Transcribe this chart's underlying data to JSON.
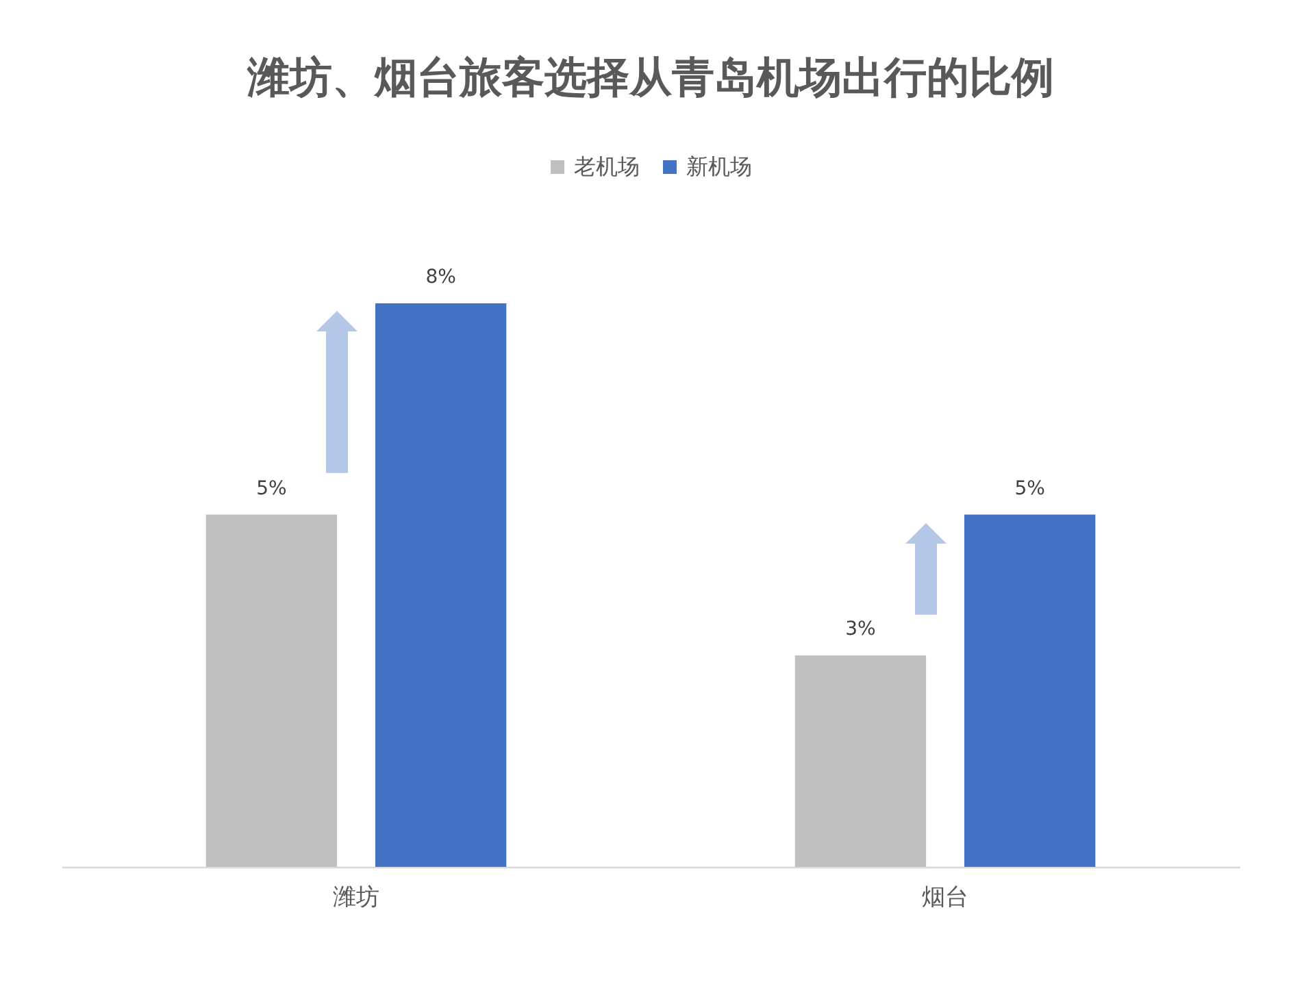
{
  "chart_data": {
    "type": "bar",
    "title": "潍坊、烟台旅客选择从青岛机场出行的比例",
    "categories": [
      "潍坊",
      "烟台"
    ],
    "series": [
      {
        "name": "老机场",
        "color": "#bfbfbf",
        "values": [
          5,
          3
        ],
        "value_labels": [
          "5%",
          "3%"
        ]
      },
      {
        "name": "新机场",
        "color": "#4472c4",
        "values": [
          8,
          5
        ],
        "value_labels": [
          "8%",
          "5%"
        ]
      }
    ],
    "legend": "top"
  }
}
